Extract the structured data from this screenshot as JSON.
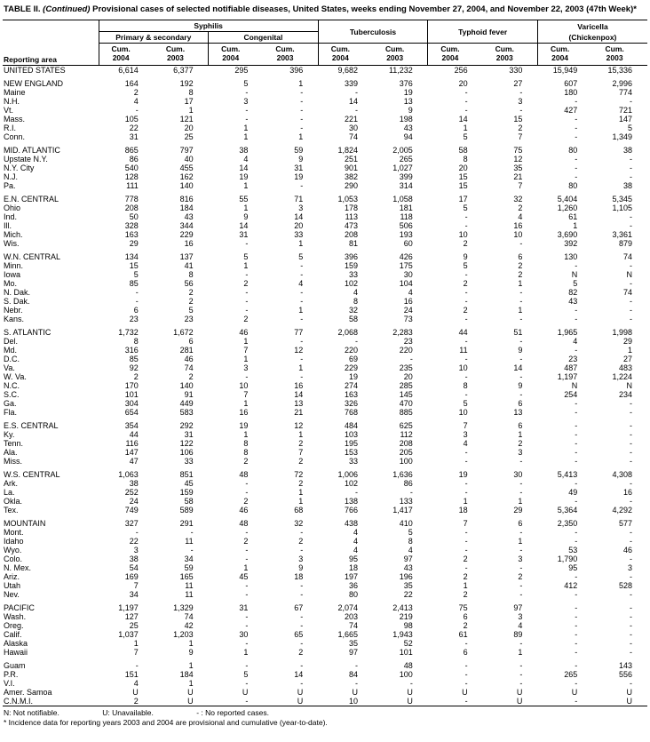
{
  "title": {
    "label": "TABLE II.",
    "continued": "(Continued)",
    "text": "Provisional cases of selected notifiable diseases, United States, weeks ending November 27, 2004, and November 22, 2003 (47th Week)*"
  },
  "table": {
    "reporting_area_label": "Reporting area",
    "groups": {
      "syphilis": "Syphilis",
      "primary_secondary": "Primary & secondary",
      "congenital": "Congenital",
      "tuberculosis": "Tuberculosis",
      "typhoid": "Typhoid fever",
      "varicella": "Varicella",
      "chickenpox": "(Chickenpox)"
    },
    "cum_2004": "Cum.\n2004",
    "cum_2003": "Cum.\n2003",
    "sections": [
      [
        {
          "area": "UNITED STATES",
          "v": [
            "6,614",
            "6,377",
            "295",
            "396",
            "9,682",
            "11,232",
            "256",
            "330",
            "15,949",
            "15,336"
          ]
        }
      ],
      [
        {
          "area": "NEW ENGLAND",
          "v": [
            "164",
            "192",
            "5",
            "1",
            "339",
            "376",
            "20",
            "27",
            "607",
            "2,996"
          ]
        },
        {
          "area": "Maine",
          "v": [
            "2",
            "8",
            "-",
            "-",
            "-",
            "19",
            "-",
            "-",
            "180",
            "774"
          ]
        },
        {
          "area": "N.H.",
          "v": [
            "4",
            "17",
            "3",
            "-",
            "14",
            "13",
            "-",
            "3",
            "-",
            "-"
          ]
        },
        {
          "area": "Vt.",
          "v": [
            "-",
            "1",
            "-",
            "-",
            "-",
            "9",
            "-",
            "-",
            "427",
            "721"
          ]
        },
        {
          "area": "Mass.",
          "v": [
            "105",
            "121",
            "-",
            "-",
            "221",
            "198",
            "14",
            "15",
            "-",
            "147"
          ]
        },
        {
          "area": "R.I.",
          "v": [
            "22",
            "20",
            "1",
            "-",
            "30",
            "43",
            "1",
            "2",
            "-",
            "5"
          ]
        },
        {
          "area": "Conn.",
          "v": [
            "31",
            "25",
            "1",
            "1",
            "74",
            "94",
            "5",
            "7",
            "-",
            "1,349"
          ]
        }
      ],
      [
        {
          "area": "MID. ATLANTIC",
          "v": [
            "865",
            "797",
            "38",
            "59",
            "1,824",
            "2,005",
            "58",
            "75",
            "80",
            "38"
          ]
        },
        {
          "area": "Upstate N.Y.",
          "v": [
            "86",
            "40",
            "4",
            "9",
            "251",
            "265",
            "8",
            "12",
            "-",
            "-"
          ]
        },
        {
          "area": "N.Y. City",
          "v": [
            "540",
            "455",
            "14",
            "31",
            "901",
            "1,027",
            "20",
            "35",
            "-",
            "-"
          ]
        },
        {
          "area": "N.J.",
          "v": [
            "128",
            "162",
            "19",
            "19",
            "382",
            "399",
            "15",
            "21",
            "-",
            "-"
          ]
        },
        {
          "area": "Pa.",
          "v": [
            "111",
            "140",
            "1",
            "-",
            "290",
            "314",
            "15",
            "7",
            "80",
            "38"
          ]
        }
      ],
      [
        {
          "area": "E.N. CENTRAL",
          "v": [
            "778",
            "816",
            "55",
            "71",
            "1,053",
            "1,058",
            "17",
            "32",
            "5,404",
            "5,345"
          ]
        },
        {
          "area": "Ohio",
          "v": [
            "208",
            "184",
            "1",
            "3",
            "178",
            "181",
            "5",
            "2",
            "1,260",
            "1,105"
          ]
        },
        {
          "area": "Ind.",
          "v": [
            "50",
            "43",
            "9",
            "14",
            "113",
            "118",
            "-",
            "4",
            "61",
            "-"
          ]
        },
        {
          "area": "Ill.",
          "v": [
            "328",
            "344",
            "14",
            "20",
            "473",
            "506",
            "-",
            "16",
            "1",
            "-"
          ]
        },
        {
          "area": "Mich.",
          "v": [
            "163",
            "229",
            "31",
            "33",
            "208",
            "193",
            "10",
            "10",
            "3,690",
            "3,361"
          ]
        },
        {
          "area": "Wis.",
          "v": [
            "29",
            "16",
            "-",
            "1",
            "81",
            "60",
            "2",
            "-",
            "392",
            "879"
          ]
        }
      ],
      [
        {
          "area": "W.N. CENTRAL",
          "v": [
            "134",
            "137",
            "5",
            "5",
            "396",
            "426",
            "9",
            "6",
            "130",
            "74"
          ]
        },
        {
          "area": "Minn.",
          "v": [
            "15",
            "41",
            "1",
            "-",
            "159",
            "175",
            "5",
            "2",
            "-",
            "-"
          ]
        },
        {
          "area": "Iowa",
          "v": [
            "5",
            "8",
            "-",
            "-",
            "33",
            "30",
            "-",
            "2",
            "N",
            "N"
          ]
        },
        {
          "area": "Mo.",
          "v": [
            "85",
            "56",
            "2",
            "4",
            "102",
            "104",
            "2",
            "1",
            "5",
            "-"
          ]
        },
        {
          "area": "N. Dak.",
          "v": [
            "-",
            "2",
            "-",
            "-",
            "4",
            "4",
            "-",
            "-",
            "82",
            "74"
          ]
        },
        {
          "area": "S. Dak.",
          "v": [
            "-",
            "2",
            "-",
            "-",
            "8",
            "16",
            "-",
            "-",
            "43",
            "-"
          ]
        },
        {
          "area": "Nebr.",
          "v": [
            "6",
            "5",
            "-",
            "1",
            "32",
            "24",
            "2",
            "1",
            "-",
            "-"
          ]
        },
        {
          "area": "Kans.",
          "v": [
            "23",
            "23",
            "2",
            "-",
            "58",
            "73",
            "-",
            "-",
            "-",
            "-"
          ]
        }
      ],
      [
        {
          "area": "S. ATLANTIC",
          "v": [
            "1,732",
            "1,672",
            "46",
            "77",
            "2,068",
            "2,283",
            "44",
            "51",
            "1,965",
            "1,998"
          ]
        },
        {
          "area": "Del.",
          "v": [
            "8",
            "6",
            "1",
            "-",
            "-",
            "23",
            "-",
            "-",
            "4",
            "29"
          ]
        },
        {
          "area": "Md.",
          "v": [
            "316",
            "281",
            "7",
            "12",
            "220",
            "220",
            "11",
            "9",
            "-",
            "1"
          ]
        },
        {
          "area": "D.C.",
          "v": [
            "85",
            "46",
            "1",
            "-",
            "69",
            "-",
            "-",
            "-",
            "23",
            "27"
          ]
        },
        {
          "area": "Va.",
          "v": [
            "92",
            "74",
            "3",
            "1",
            "229",
            "235",
            "10",
            "14",
            "487",
            "483"
          ]
        },
        {
          "area": "W. Va.",
          "v": [
            "2",
            "2",
            "-",
            "-",
            "19",
            "20",
            "-",
            "-",
            "1,197",
            "1,224"
          ]
        },
        {
          "area": "N.C.",
          "v": [
            "170",
            "140",
            "10",
            "16",
            "274",
            "285",
            "8",
            "9",
            "N",
            "N"
          ]
        },
        {
          "area": "S.C.",
          "v": [
            "101",
            "91",
            "7",
            "14",
            "163",
            "145",
            "-",
            "-",
            "254",
            "234"
          ]
        },
        {
          "area": "Ga.",
          "v": [
            "304",
            "449",
            "1",
            "13",
            "326",
            "470",
            "5",
            "6",
            "-",
            "-"
          ]
        },
        {
          "area": "Fla.",
          "v": [
            "654",
            "583",
            "16",
            "21",
            "768",
            "885",
            "10",
            "13",
            "-",
            "-"
          ]
        }
      ],
      [
        {
          "area": "E.S. CENTRAL",
          "v": [
            "354",
            "292",
            "19",
            "12",
            "484",
            "625",
            "7",
            "6",
            "-",
            "-"
          ]
        },
        {
          "area": "Ky.",
          "v": [
            "44",
            "31",
            "1",
            "1",
            "103",
            "112",
            "3",
            "1",
            "-",
            "-"
          ]
        },
        {
          "area": "Tenn.",
          "v": [
            "116",
            "122",
            "8",
            "2",
            "195",
            "208",
            "4",
            "2",
            "-",
            "-"
          ]
        },
        {
          "area": "Ala.",
          "v": [
            "147",
            "106",
            "8",
            "7",
            "153",
            "205",
            "-",
            "3",
            "-",
            "-"
          ]
        },
        {
          "area": "Miss.",
          "v": [
            "47",
            "33",
            "2",
            "2",
            "33",
            "100",
            "-",
            "-",
            "-",
            "-"
          ]
        }
      ],
      [
        {
          "area": "W.S. CENTRAL",
          "v": [
            "1,063",
            "851",
            "48",
            "72",
            "1,006",
            "1,636",
            "19",
            "30",
            "5,413",
            "4,308"
          ]
        },
        {
          "area": "Ark.",
          "v": [
            "38",
            "45",
            "-",
            "2",
            "102",
            "86",
            "-",
            "-",
            "-",
            "-"
          ]
        },
        {
          "area": "La.",
          "v": [
            "252",
            "159",
            "-",
            "1",
            "-",
            "-",
            "-",
            "-",
            "49",
            "16"
          ]
        },
        {
          "area": "Okla.",
          "v": [
            "24",
            "58",
            "2",
            "1",
            "138",
            "133",
            "1",
            "1",
            "-",
            "-"
          ]
        },
        {
          "area": "Tex.",
          "v": [
            "749",
            "589",
            "46",
            "68",
            "766",
            "1,417",
            "18",
            "29",
            "5,364",
            "4,292"
          ]
        }
      ],
      [
        {
          "area": "MOUNTAIN",
          "v": [
            "327",
            "291",
            "48",
            "32",
            "438",
            "410",
            "7",
            "6",
            "2,350",
            "577"
          ]
        },
        {
          "area": "Mont.",
          "v": [
            "-",
            "-",
            "-",
            "-",
            "4",
            "5",
            "-",
            "-",
            "-",
            "-"
          ]
        },
        {
          "area": "Idaho",
          "v": [
            "22",
            "11",
            "2",
            "2",
            "4",
            "8",
            "-",
            "1",
            "-",
            "-"
          ]
        },
        {
          "area": "Wyo.",
          "v": [
            "3",
            "-",
            "-",
            "-",
            "4",
            "4",
            "-",
            "-",
            "53",
            "46"
          ]
        },
        {
          "area": "Colo.",
          "v": [
            "38",
            "34",
            "-",
            "3",
            "95",
            "97",
            "2",
            "3",
            "1,790",
            "-"
          ]
        },
        {
          "area": "N. Mex.",
          "v": [
            "54",
            "59",
            "1",
            "9",
            "18",
            "43",
            "-",
            "-",
            "95",
            "3"
          ]
        },
        {
          "area": "Ariz.",
          "v": [
            "169",
            "165",
            "45",
            "18",
            "197",
            "196",
            "2",
            "2",
            "-",
            "-"
          ]
        },
        {
          "area": "Utah",
          "v": [
            "7",
            "11",
            "-",
            "-",
            "36",
            "35",
            "1",
            "-",
            "412",
            "528"
          ]
        },
        {
          "area": "Nev.",
          "v": [
            "34",
            "11",
            "-",
            "-",
            "80",
            "22",
            "2",
            "-",
            "-",
            "-"
          ]
        }
      ],
      [
        {
          "area": "PACIFIC",
          "v": [
            "1,197",
            "1,329",
            "31",
            "67",
            "2,074",
            "2,413",
            "75",
            "97",
            "-",
            "-"
          ]
        },
        {
          "area": "Wash.",
          "v": [
            "127",
            "74",
            "-",
            "-",
            "203",
            "219",
            "6",
            "3",
            "-",
            "-"
          ]
        },
        {
          "area": "Oreg.",
          "v": [
            "25",
            "42",
            "-",
            "-",
            "74",
            "98",
            "2",
            "4",
            "-",
            "-"
          ]
        },
        {
          "area": "Calif.",
          "v": [
            "1,037",
            "1,203",
            "30",
            "65",
            "1,665",
            "1,943",
            "61",
            "89",
            "-",
            "-"
          ]
        },
        {
          "area": "Alaska",
          "v": [
            "1",
            "1",
            "-",
            "-",
            "35",
            "52",
            "-",
            "-",
            "-",
            "-"
          ]
        },
        {
          "area": "Hawaii",
          "v": [
            "7",
            "9",
            "1",
            "2",
            "97",
            "101",
            "6",
            "1",
            "-",
            "-"
          ]
        }
      ],
      [
        {
          "area": "Guam",
          "v": [
            "-",
            "1",
            "-",
            "-",
            "-",
            "48",
            "-",
            "-",
            "-",
            "143"
          ]
        },
        {
          "area": "P.R.",
          "v": [
            "151",
            "184",
            "5",
            "14",
            "84",
            "100",
            "-",
            "-",
            "265",
            "556"
          ]
        },
        {
          "area": "V.I.",
          "v": [
            "4",
            "1",
            "-",
            "-",
            "-",
            "-",
            "-",
            "-",
            "-",
            "-"
          ]
        },
        {
          "area": "Amer. Samoa",
          "v": [
            "U",
            "U",
            "U",
            "U",
            "U",
            "U",
            "U",
            "U",
            "U",
            "U"
          ]
        },
        {
          "area": "C.N.M.I.",
          "v": [
            "2",
            "U",
            "-",
            "U",
            "10",
            "U",
            "-",
            "U",
            "-",
            "U"
          ]
        }
      ]
    ]
  },
  "footer": {
    "legend": [
      "N: Not notifiable.",
      "U: Unavailable.",
      "- : No reported cases."
    ],
    "note": "* Incidence data for reporting years 2003 and 2004 are provisional and cumulative (year-to-date)."
  }
}
